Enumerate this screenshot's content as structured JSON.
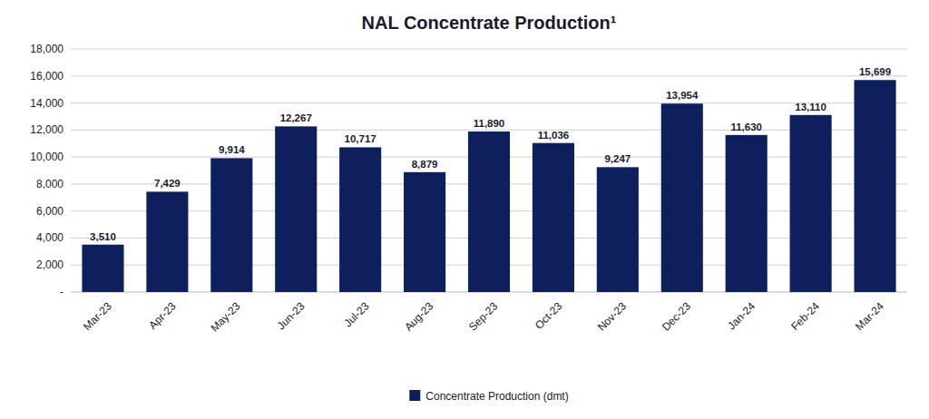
{
  "chart_data": {
    "type": "bar",
    "title": "NAL Concentrate Production¹",
    "categories": [
      "Mar-23",
      "Apr-23",
      "May-23",
      "Jun-23",
      "Jul-23",
      "Aug-23",
      "Sep-23",
      "Oct-23",
      "Nov-23",
      "Dec-23",
      "Jan-24",
      "Feb-24",
      "Mar-24"
    ],
    "series": [
      {
        "name": "Concentrate Production (dmt)",
        "color": "#0d1f5c",
        "values": [
          3510,
          7429,
          9914,
          12267,
          10717,
          8879,
          11890,
          11036,
          9247,
          13954,
          11630,
          13110,
          15699
        ],
        "value_labels": [
          "3,510",
          "7,429",
          "9,914",
          "12,267",
          "10,717",
          "8,879",
          "11,890",
          "11,036",
          "9,247",
          "13,954",
          "11,630",
          "13,110",
          "15,699"
        ]
      }
    ],
    "ylim": [
      0,
      18000
    ],
    "yticks": [
      {
        "value": 0,
        "label": "-"
      },
      {
        "value": 2000,
        "label": "2,000"
      },
      {
        "value": 4000,
        "label": "4,000"
      },
      {
        "value": 6000,
        "label": "6,000"
      },
      {
        "value": 8000,
        "label": "8,000"
      },
      {
        "value": 10000,
        "label": "10,000"
      },
      {
        "value": 12000,
        "label": "12,000"
      },
      {
        "value": 14000,
        "label": "14,000"
      },
      {
        "value": 16000,
        "label": "16,000"
      },
      {
        "value": 18000,
        "label": "18,000"
      }
    ],
    "grid": true,
    "data_labels": true,
    "legend": "bottom"
  }
}
